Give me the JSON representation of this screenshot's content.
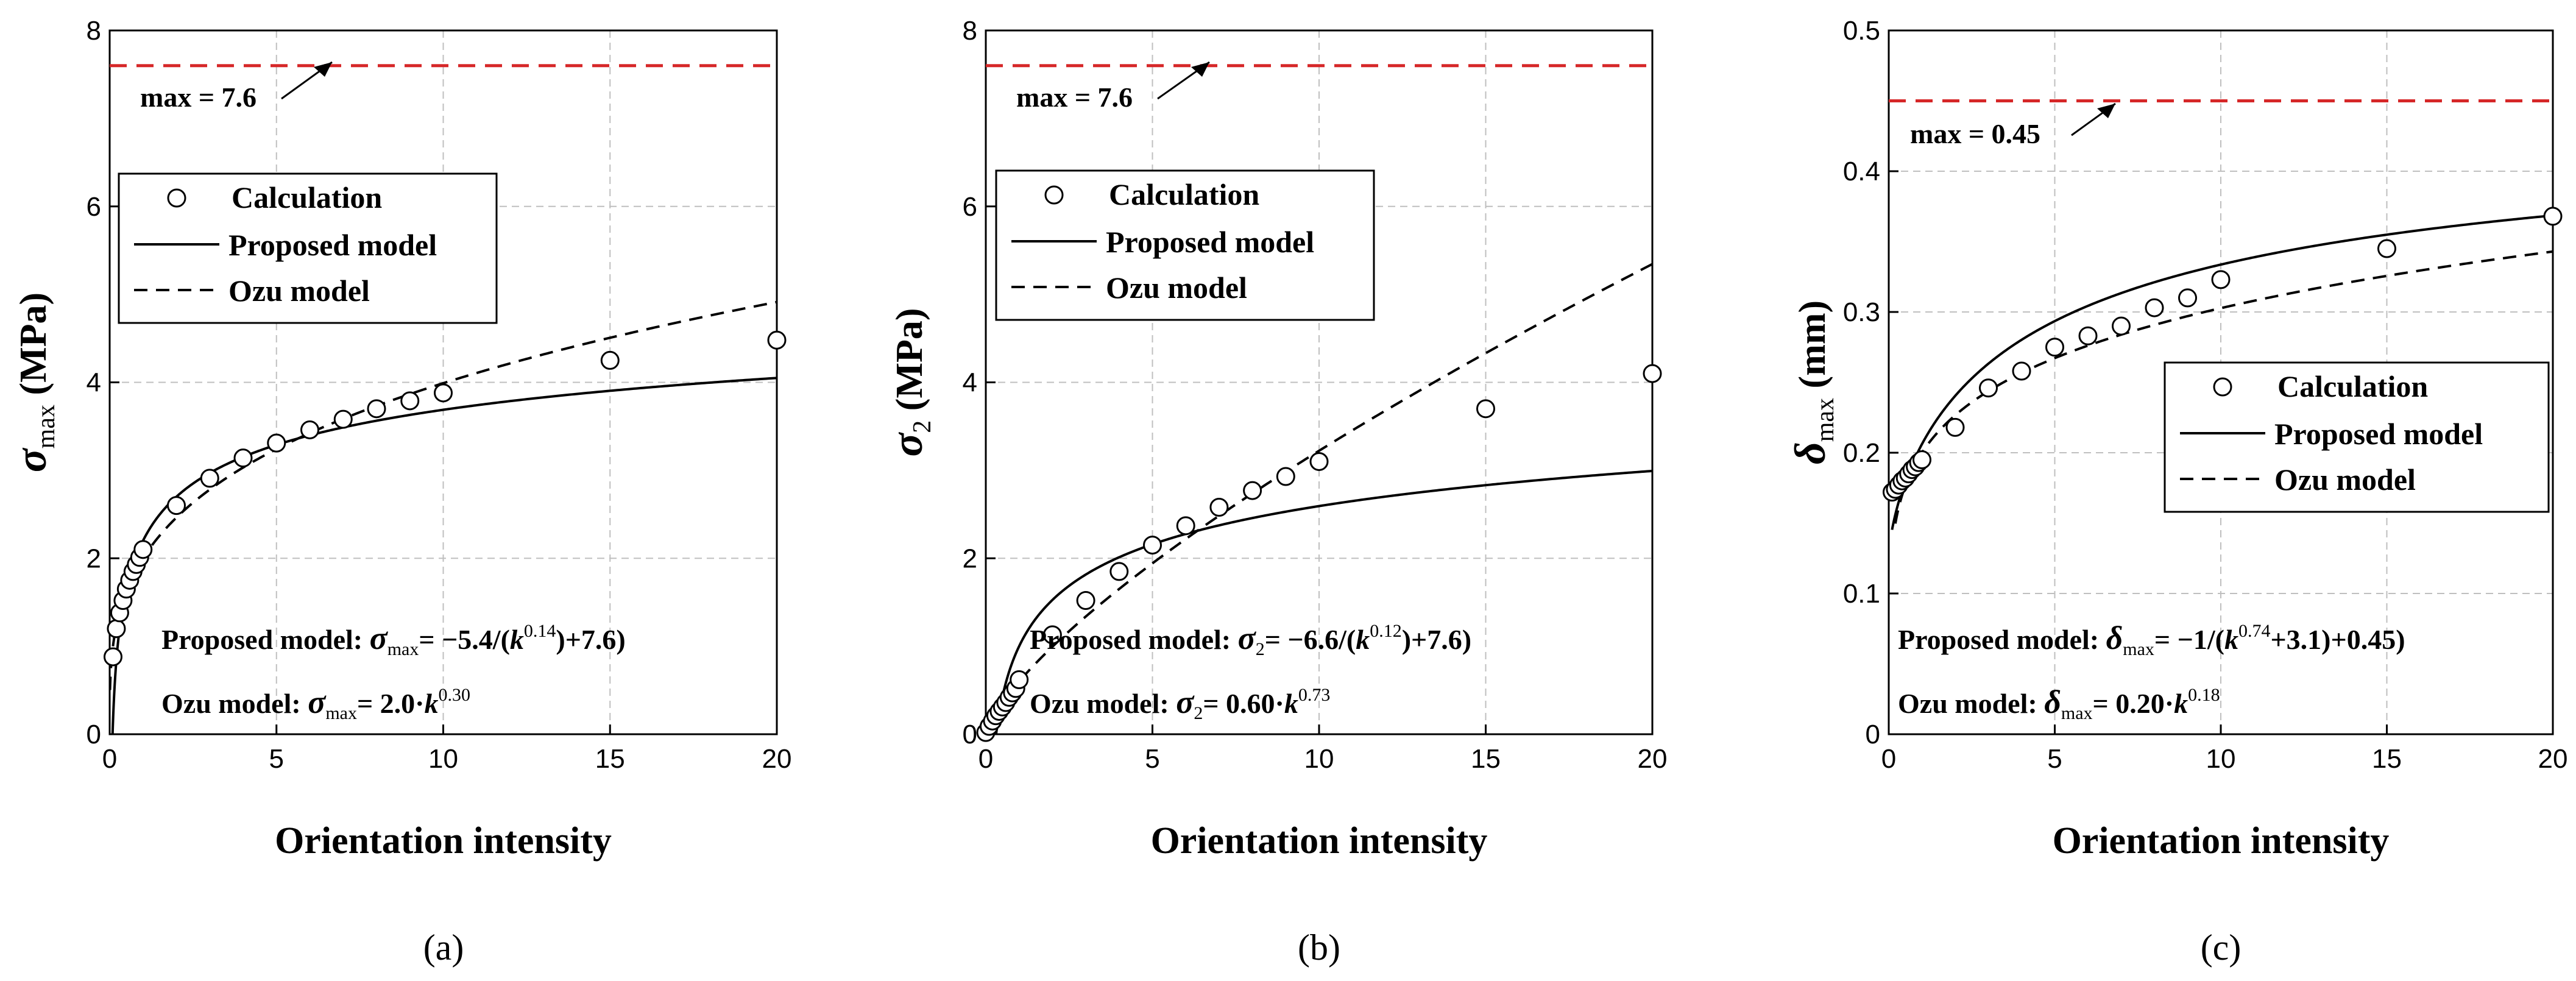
{
  "figure": {
    "panels": [
      "(a)",
      "(b)",
      "(c)"
    ]
  },
  "chart_data": [
    {
      "type": "scatter",
      "panel_label": "(a)",
      "xlabel": "Orientation intensity",
      "ylabel": {
        "symbol": "σ",
        "sub": "max",
        "unit": " (MPa)"
      },
      "xlim": [
        0,
        20
      ],
      "ylim": [
        0,
        8
      ],
      "xticks": [
        "0",
        "5",
        "10",
        "15",
        "20"
      ],
      "yticks": [
        "0",
        "2",
        "4",
        "6",
        "8"
      ],
      "xtick_values": [
        0,
        5,
        10,
        15,
        20
      ],
      "ytick_values": [
        0,
        2,
        4,
        6,
        8
      ],
      "grid": true,
      "legend": {
        "position": "upper-left",
        "entries": [
          "Calculation",
          "Proposed model",
          "Ozu model"
        ]
      },
      "max_line": {
        "value": 7.6,
        "label": "max = 7.6",
        "color": "#d62728"
      },
      "calculation": {
        "x": [
          0.1,
          0.2,
          0.3,
          0.4,
          0.5,
          0.6,
          0.7,
          0.8,
          0.9,
          1,
          2,
          3,
          4,
          5,
          6,
          7,
          8,
          9,
          10,
          15,
          20
        ],
        "y": [
          0.88,
          1.2,
          1.38,
          1.52,
          1.65,
          1.75,
          1.85,
          1.93,
          2.01,
          2.1,
          2.6,
          2.91,
          3.14,
          3.31,
          3.46,
          3.58,
          3.7,
          3.79,
          3.88,
          4.25,
          4.48
        ]
      },
      "proposed_model": {
        "formula": "a - b/(k^c)",
        "a": 7.6,
        "b": 5.4,
        "c": 0.14,
        "x_start": 0.05
      },
      "ozu_model": {
        "formula": "a*k^b",
        "a": 2.0,
        "b": 0.3,
        "x_start": 0.01
      },
      "equations": {
        "proposed": {
          "lead": "Proposed model: ",
          "sym": "σ",
          "sub": "max",
          "body": "= −5.4/(",
          "k": "k",
          "exp": "0.14",
          "tail": ")+7.6)"
        },
        "ozu": {
          "lead": "Ozu model: ",
          "sym": "σ",
          "sub": "max",
          "body": "= 2.0·",
          "k": "k",
          "exp": "0.30"
        }
      }
    },
    {
      "type": "scatter",
      "panel_label": "(b)",
      "xlabel": "Orientation intensity",
      "ylabel": {
        "symbol": "σ",
        "sub": "2",
        "unit": " (MPa)"
      },
      "xlim": [
        0,
        20
      ],
      "ylim": [
        0,
        8
      ],
      "xticks": [
        "0",
        "5",
        "10",
        "15",
        "20"
      ],
      "yticks": [
        "0",
        "2",
        "4",
        "6",
        "8"
      ],
      "xtick_values": [
        0,
        5,
        10,
        15,
        20
      ],
      "ytick_values": [
        0,
        2,
        4,
        6,
        8
      ],
      "grid": true,
      "legend": {
        "position": "upper-left",
        "entries": [
          "Calculation",
          "Proposed model",
          "Ozu model"
        ]
      },
      "max_line": {
        "value": 7.6,
        "label": "max = 7.6",
        "color": "#d62728"
      },
      "calculation": {
        "x": [
          0,
          0.1,
          0.2,
          0.3,
          0.4,
          0.5,
          0.6,
          0.7,
          0.8,
          0.9,
          1,
          2,
          3,
          4,
          5,
          6,
          7,
          8,
          9,
          10,
          15,
          20
        ],
        "y": [
          0.02,
          0.09,
          0.15,
          0.21,
          0.26,
          0.31,
          0.36,
          0.42,
          0.47,
          0.52,
          0.62,
          1.13,
          1.52,
          1.85,
          2.15,
          2.37,
          2.58,
          2.77,
          2.93,
          3.1,
          3.7,
          4.1
        ]
      },
      "proposed_model": {
        "formula": "a - b/(k^c)",
        "a": 7.6,
        "b": 6.6,
        "c": 0.12,
        "x_start": 0.05
      },
      "ozu_model": {
        "formula": "a*k^b",
        "a": 0.6,
        "b": 0.73,
        "x_start": 0.0
      },
      "equations": {
        "proposed": {
          "lead": "Proposed model: ",
          "sym": "σ",
          "sub": "2",
          "body": "= −6.6/(",
          "k": "k",
          "exp": "0.12",
          "tail": ")+7.6)"
        },
        "ozu": {
          "lead": "Ozu model: ",
          "sym": "σ",
          "sub": "2",
          "body": "= 0.60·",
          "k": "k",
          "exp": "0.73"
        }
      }
    },
    {
      "type": "scatter",
      "panel_label": "(c)",
      "xlabel": "Orientation intensity",
      "ylabel": {
        "symbol": "δ",
        "sub": "max",
        "unit": " (mm)"
      },
      "xlim": [
        0,
        20
      ],
      "ylim": [
        0,
        0.5
      ],
      "xticks": [
        "0",
        "5",
        "10",
        "15",
        "20"
      ],
      "yticks": [
        "0",
        "0.1",
        "0.2",
        "0.3",
        "0.4",
        "0.5"
      ],
      "xtick_values": [
        0,
        5,
        10,
        15,
        20
      ],
      "ytick_values": [
        0,
        0.1,
        0.2,
        0.3,
        0.4,
        0.5
      ],
      "grid": true,
      "legend": {
        "position": "lower-right",
        "entries": [
          "Calculation",
          "Proposed model",
          "Ozu model"
        ]
      },
      "max_line": {
        "value": 0.45,
        "label": "max = 0.45",
        "color": "#d62728"
      },
      "calculation": {
        "x": [
          0.1,
          0.2,
          0.3,
          0.4,
          0.5,
          0.6,
          0.7,
          0.8,
          0.9,
          1,
          2,
          3,
          4,
          5,
          6,
          7,
          8,
          9,
          10,
          15,
          20
        ],
        "y": [
          0.172,
          0.174,
          0.177,
          0.18,
          0.182,
          0.185,
          0.188,
          0.19,
          0.193,
          0.195,
          0.218,
          0.246,
          0.258,
          0.275,
          0.283,
          0.29,
          0.303,
          0.31,
          0.323,
          0.345,
          0.368
        ]
      },
      "proposed_model": {
        "formula": "a - 1/(k^c + d)",
        "a": 0.45,
        "b": 1,
        "c": 0.74,
        "d": 3.1,
        "x_start": 0.1
      },
      "ozu_model": {
        "formula": "a*k^b",
        "a": 0.2,
        "b": 0.18,
        "x_start": 0.2
      },
      "equations": {
        "proposed": {
          "lead": "Proposed model: ",
          "sym": "δ",
          "sub": "max",
          "body": "= −1/(",
          "k": "k",
          "exp": "0.74",
          "tail": "+3.1)+0.45)"
        },
        "ozu": {
          "lead": "Ozu model: ",
          "sym": "δ",
          "sub": "max",
          "body": "= 0.20·",
          "k": "k",
          "exp": "0.18"
        }
      }
    }
  ],
  "colors": {
    "axis": "#000000",
    "grid": "#bfbfbf",
    "max_line": "#d62728"
  }
}
